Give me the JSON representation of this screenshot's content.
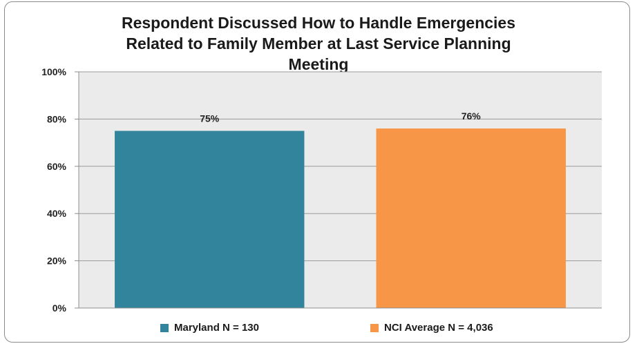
{
  "chart_data": {
    "type": "bar",
    "title_lines": [
      "Respondent Discussed How to Handle Emergencies",
      "Related to Family Member at Last Service Planning",
      "Meeting"
    ],
    "categories": [
      "Maryland N = 130",
      "NCI Average N = 4,036"
    ],
    "values": [
      75,
      76
    ],
    "data_labels": [
      "75%",
      "76%"
    ],
    "colors": [
      "#31849B",
      "#F79646"
    ],
    "ylim": [
      0,
      100
    ],
    "yticks": [
      "0%",
      "20%",
      "40%",
      "60%",
      "80%",
      "100%"
    ],
    "grid": true,
    "plot_background": "#EBEBEB",
    "legend_position": "bottom"
  }
}
